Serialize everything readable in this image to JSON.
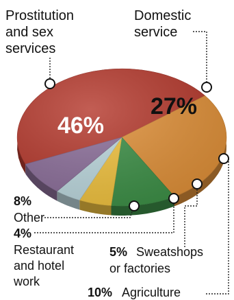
{
  "chart_data": {
    "type": "pie",
    "slices": [
      {
        "label": "Prostitution and sex services",
        "label_lines": [
          "Prostitution",
          "and sex",
          "services"
        ],
        "value": 46,
        "value_label": "46%",
        "color": "#b53a2e"
      },
      {
        "label": "Domestic service",
        "label_lines": [
          "Domestic",
          "service"
        ],
        "value": 27,
        "value_label": "27%",
        "color": "#e0913a"
      },
      {
        "label": "Agriculture",
        "label_lines": [
          "Agriculture"
        ],
        "value": 10,
        "value_label": "10%",
        "color": "#3e9048"
      },
      {
        "label": "Sweatshops or factories",
        "label_lines": [
          "Sweatshops",
          "or factories"
        ],
        "value": 5,
        "value_label": "5%",
        "color": "#f0c240"
      },
      {
        "label": "Restaurant and hotel work",
        "label_lines": [
          "Restaurant",
          "and hotel",
          "work"
        ],
        "value": 4,
        "value_label": "4%",
        "color": "#bcd7dd"
      },
      {
        "label": "Other",
        "label_lines": [
          "Other"
        ],
        "value": 8,
        "value_label": "8%",
        "color": "#8c6f9a"
      }
    ]
  }
}
